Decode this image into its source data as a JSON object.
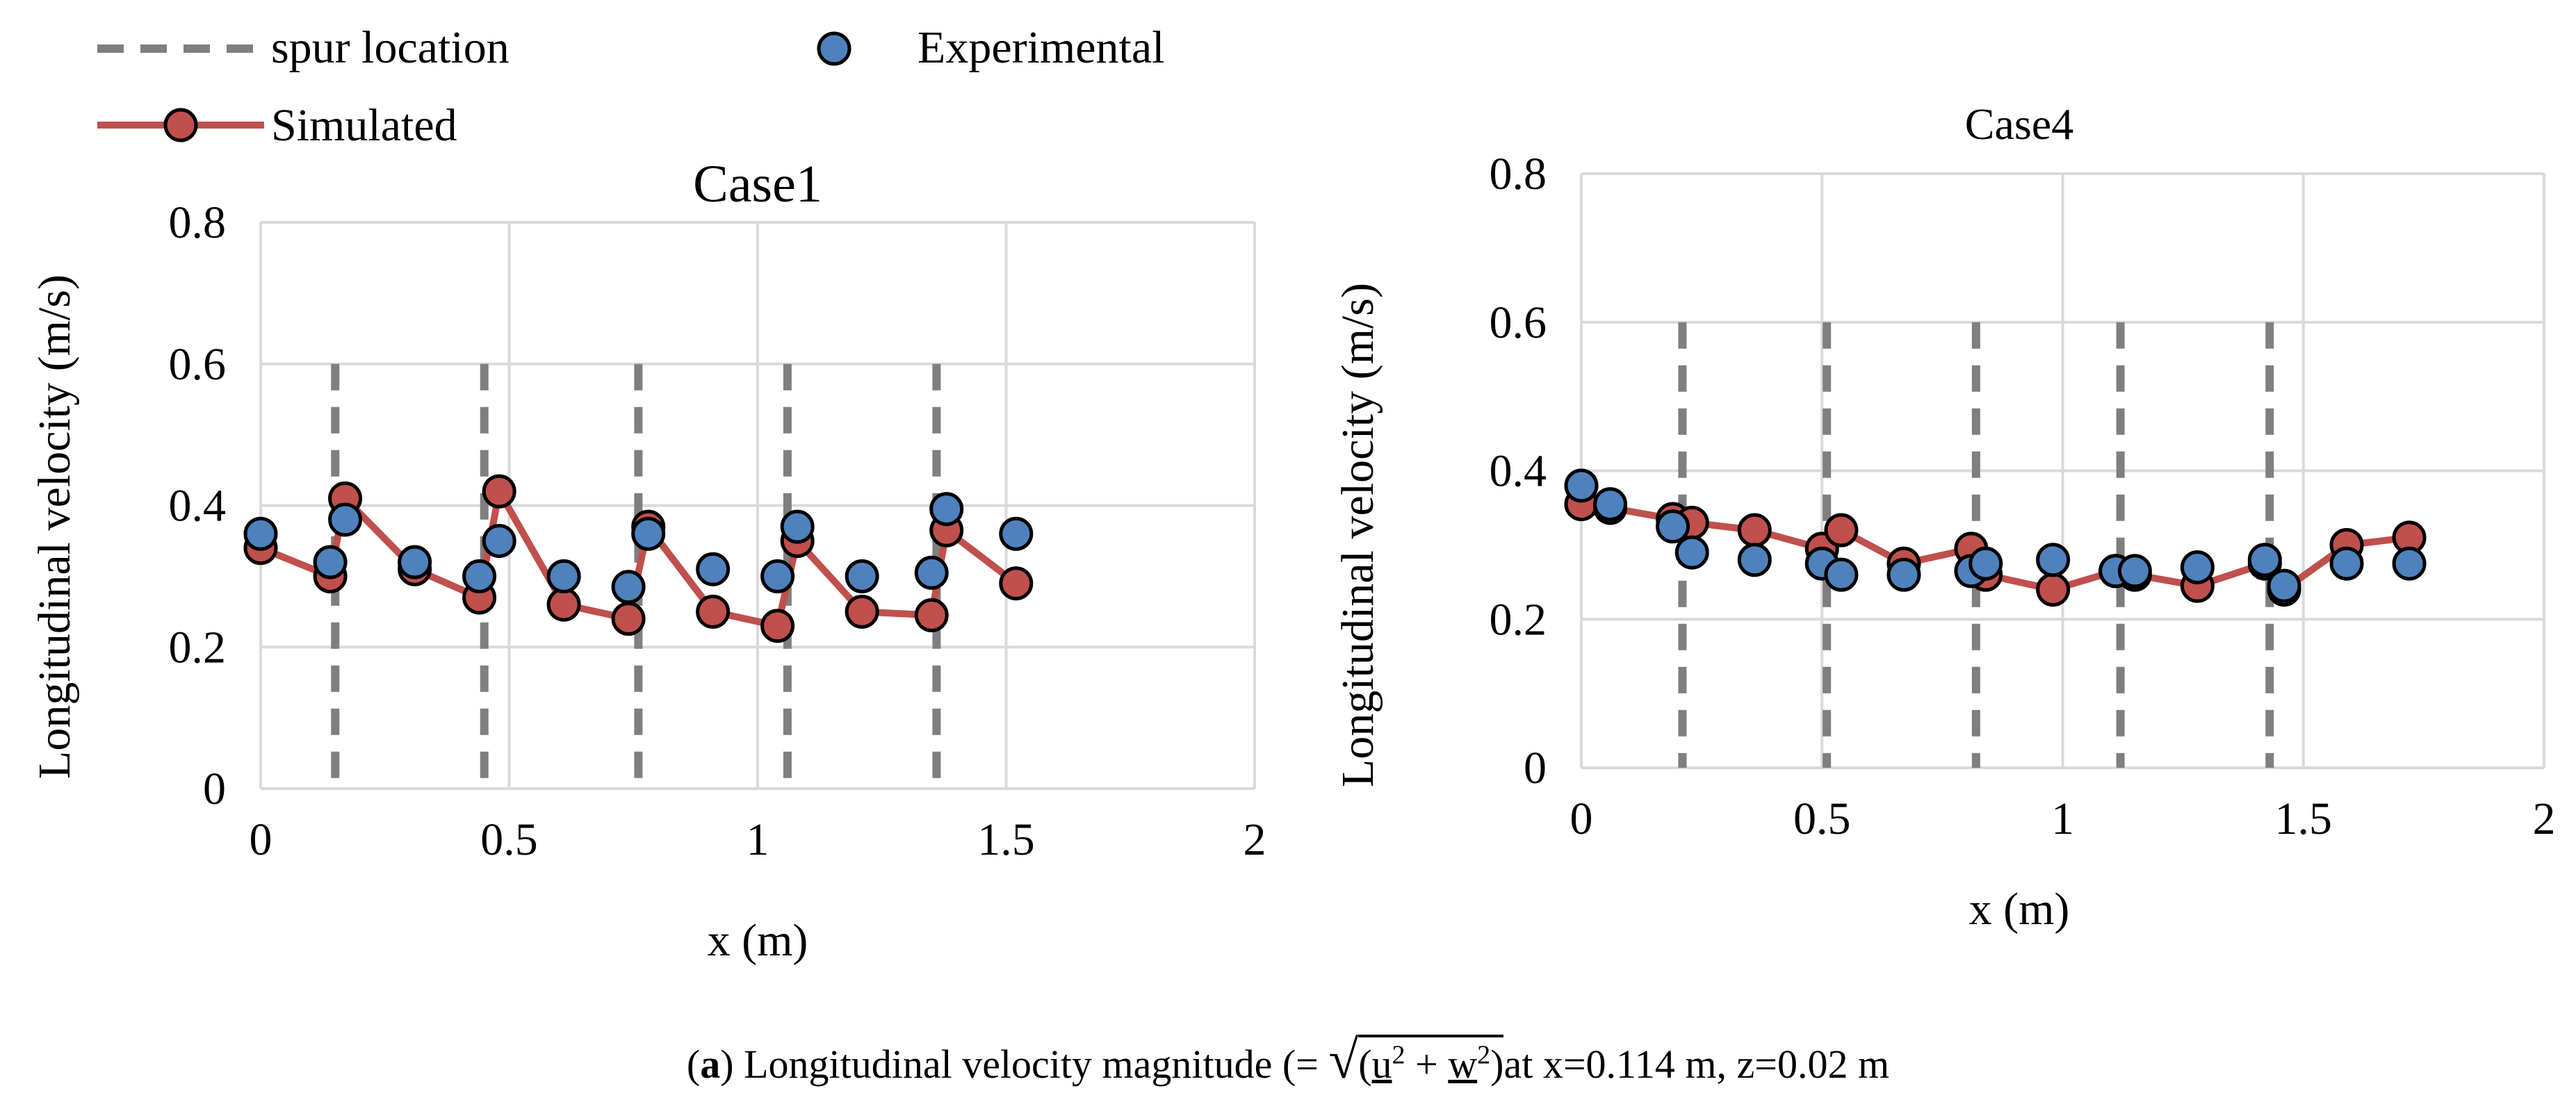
{
  "legend": {
    "spur_label": "spur location",
    "simulated_label": "Simulated",
    "experimental_label": "Experimental"
  },
  "colors": {
    "simulated": "#c0504d",
    "experimental": "#4f81bd",
    "spur": "#7f7f7f",
    "grid": "#d9d9d9"
  },
  "chart_data": [
    {
      "type": "line",
      "title": "Case1",
      "xlabel": "x (m)",
      "ylabel": "Longitudinal velocity  (m/s)",
      "xlim": [
        0,
        2
      ],
      "ylim": [
        0,
        0.8
      ],
      "xticks": [
        0,
        0.5,
        1,
        1.5,
        2
      ],
      "xtick_labels": [
        "0",
        "0.5",
        "1",
        "1.5",
        "2"
      ],
      "yticks": [
        0,
        0.2,
        0.4,
        0.6,
        0.8
      ],
      "ytick_labels": [
        "0",
        "0.2",
        "0.4",
        "0.6",
        "0.8"
      ],
      "spur_locations": [
        0.15,
        0.45,
        0.76,
        1.06,
        1.36
      ],
      "spur_top": 0.6,
      "series": [
        {
          "name": "Simulated",
          "x": [
            0,
            0.14,
            0.17,
            0.31,
            0.44,
            0.48,
            0.61,
            0.74,
            0.78,
            0.91,
            1.04,
            1.08,
            1.21,
            1.35,
            1.38,
            1.52
          ],
          "y": [
            0.34,
            0.3,
            0.41,
            0.31,
            0.27,
            0.42,
            0.26,
            0.24,
            0.37,
            0.25,
            0.23,
            0.35,
            0.25,
            0.245,
            0.365,
            0.29
          ]
        },
        {
          "name": "Experimental",
          "x": [
            0,
            0.14,
            0.17,
            0.31,
            0.44,
            0.48,
            0.61,
            0.74,
            0.78,
            0.91,
            1.04,
            1.08,
            1.21,
            1.35,
            1.38,
            1.52
          ],
          "y": [
            0.36,
            0.32,
            0.38,
            0.32,
            0.3,
            0.35,
            0.3,
            0.285,
            0.36,
            0.31,
            0.3,
            0.37,
            0.3,
            0.305,
            0.395,
            0.36
          ]
        }
      ]
    },
    {
      "type": "line",
      "title": "Case4",
      "xlabel": "x (m)",
      "ylabel": "Longitudinal velocity  (m/s)",
      "xlim": [
        0,
        2
      ],
      "ylim": [
        0,
        0.8
      ],
      "xticks": [
        0,
        0.5,
        1,
        1.5,
        2
      ],
      "xtick_labels": [
        "0",
        "0.5",
        "1",
        "1.5",
        "2"
      ],
      "yticks": [
        0,
        0.2,
        0.4,
        0.6,
        0.8
      ],
      "ytick_labels": [
        "0",
        "0.2",
        "0.4",
        "0.6",
        "0.8"
      ],
      "spur_locations": [
        0.21,
        0.51,
        0.82,
        1.12,
        1.43
      ],
      "spur_top": 0.6,
      "series": [
        {
          "name": "Simulated",
          "x": [
            0,
            0.06,
            0.19,
            0.23,
            0.36,
            0.5,
            0.54,
            0.67,
            0.81,
            0.84,
            0.98,
            1.11,
            1.15,
            1.28,
            1.42,
            1.46,
            1.59,
            1.72
          ],
          "y": [
            0.355,
            0.35,
            0.335,
            0.33,
            0.32,
            0.295,
            0.32,
            0.275,
            0.295,
            0.26,
            0.24,
            0.265,
            0.26,
            0.245,
            0.275,
            0.24,
            0.3,
            0.31
          ]
        },
        {
          "name": "Experimental",
          "x": [
            0,
            0.06,
            0.19,
            0.23,
            0.36,
            0.5,
            0.54,
            0.67,
            0.81,
            0.84,
            0.98,
            1.11,
            1.15,
            1.28,
            1.42,
            1.46,
            1.59,
            1.72
          ],
          "y": [
            0.38,
            0.355,
            0.325,
            0.29,
            0.28,
            0.275,
            0.26,
            0.26,
            0.265,
            0.275,
            0.28,
            0.265,
            0.265,
            0.27,
            0.28,
            0.245,
            0.275,
            0.275
          ]
        }
      ]
    }
  ],
  "caption": {
    "label": "a",
    "prefix": "(",
    "text_before": ") Longitudinal velocity magnitude (= ",
    "sqrt": "√",
    "open": "(",
    "u": "u",
    "sq1": "2",
    "plus": " + ",
    "w": "w",
    "sq2": "2",
    "close": ")",
    "text_after": "at x=0.114 m, z=0.02 m"
  }
}
